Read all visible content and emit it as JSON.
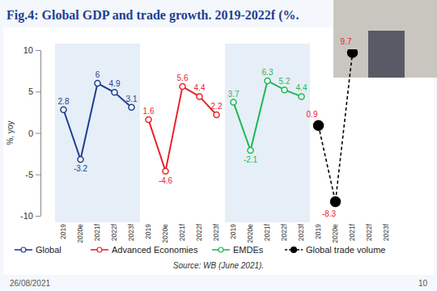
{
  "chart_data": {
    "type": "line",
    "title": "Fig.4: Global GDP and trade growth. 2019-2022f (%.",
    "y_label": "%, yoy",
    "source": "Source: WB (June 2021).",
    "categories": [
      "2019",
      "2020e",
      "2021f",
      "2022f",
      "2023f",
      "2019",
      "2020e",
      "2021f",
      "2022f",
      "2023f",
      "2019",
      "2020e",
      "2021f",
      "2022f",
      "2023f",
      "2019",
      "2020e",
      "2021f",
      "2022f",
      "2023f"
    ],
    "series": [
      {
        "name": "Global",
        "color": "#1f3f8f",
        "marker": "circle-open",
        "line_style": "solid",
        "values": [
          2.8,
          -3.2,
          6,
          4.9,
          3.1,
          null,
          null,
          null,
          null,
          null,
          null,
          null,
          null,
          null,
          null,
          null,
          null,
          null,
          null,
          null
        ]
      },
      {
        "name": "Advanced Economies",
        "color": "#e8232b",
        "marker": "circle-open",
        "line_style": "solid",
        "values": [
          null,
          null,
          null,
          null,
          null,
          1.6,
          -4.6,
          5.6,
          4.4,
          2.2,
          null,
          null,
          null,
          null,
          null,
          null,
          null,
          null,
          null,
          null
        ]
      },
      {
        "name": "EMDEs",
        "color": "#1db954",
        "marker": "circle-open",
        "line_style": "solid",
        "values": [
          null,
          null,
          null,
          null,
          null,
          null,
          null,
          null,
          null,
          null,
          3.7,
          -2.1,
          6.3,
          5.2,
          4.4,
          null,
          null,
          null,
          null,
          null
        ]
      },
      {
        "name": "Global trade volume",
        "color": "#000000",
        "marker": "circle",
        "line_style": "dashed",
        "values": [
          null,
          null,
          null,
          null,
          null,
          null,
          null,
          null,
          null,
          null,
          null,
          null,
          null,
          null,
          null,
          0.9,
          -8.3,
          9.7,
          null,
          null
        ]
      }
    ],
    "ylim": [
      -10,
      10
    ],
    "yticks": [
      -10,
      -5,
      0,
      5,
      10
    ],
    "grid": false,
    "legend": "bottom",
    "data_labels": true
  },
  "slide": {
    "date": "26/08/2021",
    "number": 10
  }
}
